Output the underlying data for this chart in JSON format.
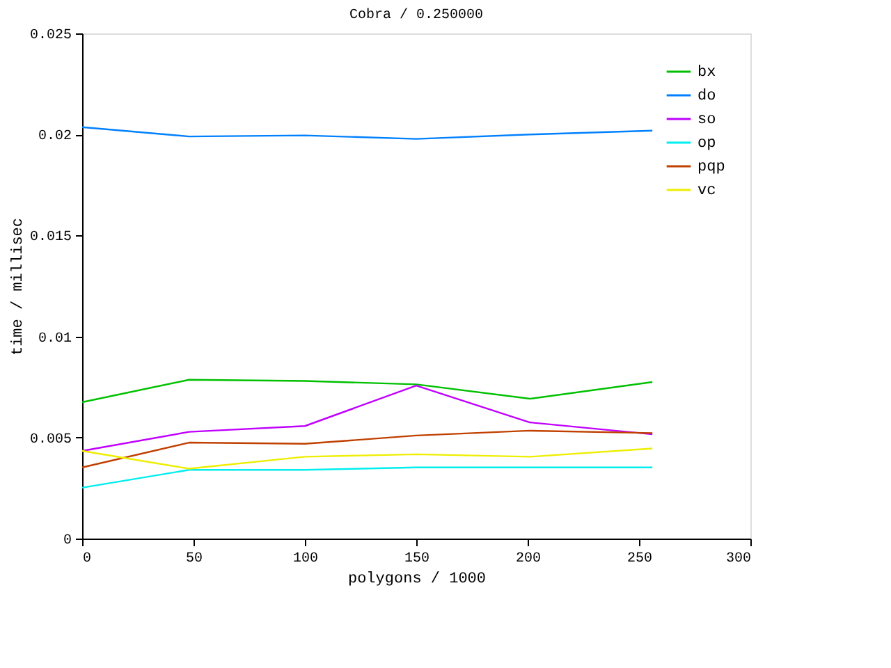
{
  "chart_data": {
    "type": "line",
    "title": "Cobra / 0.250000",
    "xlabel": "polygons / 1000",
    "ylabel": "time / millisec",
    "x": [
      0,
      48,
      100,
      150,
      201,
      256
    ],
    "series": [
      {
        "name": "bx",
        "color": "#00c000",
        "values": [
          0.00675,
          0.00786,
          0.0078,
          0.00763,
          0.00692,
          0.00775
        ]
      },
      {
        "name": "do",
        "color": "#0080ff",
        "values": [
          0.02036,
          0.0199,
          0.01995,
          0.01978,
          0.02,
          0.02019
        ]
      },
      {
        "name": "so",
        "color": "#c000ff",
        "values": [
          0.00434,
          0.00528,
          0.00557,
          0.00757,
          0.00575,
          0.00516
        ]
      },
      {
        "name": "op",
        "color": "#00eeee",
        "values": [
          0.00252,
          0.0034,
          0.0034,
          0.00352,
          0.00352,
          0.00352
        ]
      },
      {
        "name": "pqp",
        "color": "#c04000",
        "values": [
          0.00352,
          0.00475,
          0.00469,
          0.0051,
          0.00534,
          0.00522
        ]
      },
      {
        "name": "vc",
        "color": "#eeee00",
        "values": [
          0.00434,
          0.00346,
          0.00405,
          0.00417,
          0.00405,
          0.00446
        ]
      }
    ],
    "xlim": [
      0,
      300
    ],
    "xticks": [
      0,
      50,
      100,
      150,
      200,
      250,
      300
    ],
    "ylim": [
      0,
      0.025
    ],
    "yticks": [
      0,
      0.005,
      0.01,
      0.015,
      0.02,
      0.025
    ],
    "grid": false,
    "legend": "top right",
    "marker": "none",
    "line_style": "solid"
  }
}
